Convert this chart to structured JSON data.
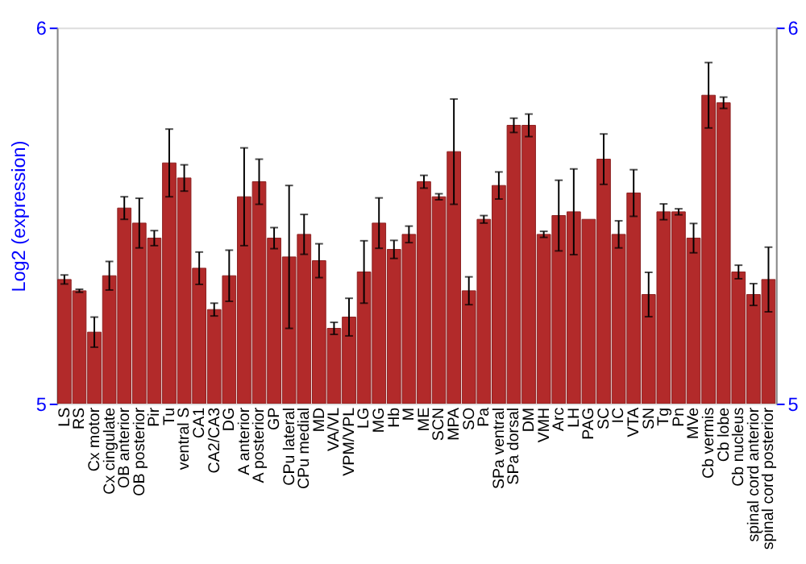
{
  "chart_data": {
    "type": "bar",
    "ylabel": "Log2 (expression)",
    "categories": [
      "LS",
      "RS",
      "Cx motor",
      "Cx cingulate",
      "OB anterior",
      "OB posterior",
      "Pir",
      "Tu",
      "ventral S",
      "CA1",
      "CA2/CA3",
      "DG",
      "A anterior",
      "A posterior",
      "GP",
      "CPu lateral",
      "CPu medial",
      "MD",
      "VA/VL",
      "VPM/VPL",
      "LG",
      "MG",
      "Hb",
      "M",
      "ME",
      "SCN",
      "MPA",
      "SO",
      "Pa",
      "SPa ventral",
      "SPa dorsal",
      "DM",
      "VMH",
      "Arc",
      "LH",
      "PAG",
      "SC",
      "IC",
      "VTA",
      "SN",
      "Tg",
      "Pn",
      "MVe",
      "Cb vermis",
      "Cb lobe",
      "Cb nucleus",
      "spinal cord anterior",
      "spinal cord posterior"
    ],
    "series": [
      {
        "color": "#b22a2a",
        "values": [
          5.33,
          5.3,
          5.19,
          5.34,
          5.52,
          5.48,
          5.44,
          5.64,
          5.6,
          5.36,
          5.25,
          5.34,
          5.55,
          5.59,
          5.44,
          5.39,
          5.45,
          5.38,
          5.2,
          5.23,
          5.35,
          5.48,
          5.41,
          5.45,
          5.59,
          5.55,
          5.67,
          5.3,
          5.49,
          5.58,
          5.74,
          5.74,
          5.45,
          5.5,
          5.51,
          5.49,
          5.65,
          5.45,
          5.56,
          5.29,
          5.51,
          5.51,
          5.44,
          5.82,
          5.8,
          5.35,
          5.29,
          5.33
        ],
        "errors": [
          0.012,
          0.004,
          0.04,
          0.038,
          0.03,
          0.066,
          0.02,
          0.09,
          0.035,
          0.043,
          0.017,
          0.068,
          0.13,
          0.06,
          0.028,
          0.19,
          0.053,
          0.045,
          0.016,
          0.05,
          0.083,
          0.067,
          0.024,
          0.022,
          0.017,
          0.008,
          0.14,
          0.037,
          0.01,
          0.036,
          0.019,
          0.03,
          0.008,
          0.094,
          0.114,
          null,
          0.067,
          0.036,
          0.062,
          0.059,
          0.021,
          0.008,
          0.039,
          0.087,
          0.015,
          0.018,
          0.029,
          0.086
        ]
      }
    ],
    "ylim": [
      5,
      6
    ],
    "yticks": [
      5,
      6
    ],
    "y2lim": [
      5,
      6
    ],
    "y2ticks": [
      5,
      6
    ],
    "grid": false
  }
}
